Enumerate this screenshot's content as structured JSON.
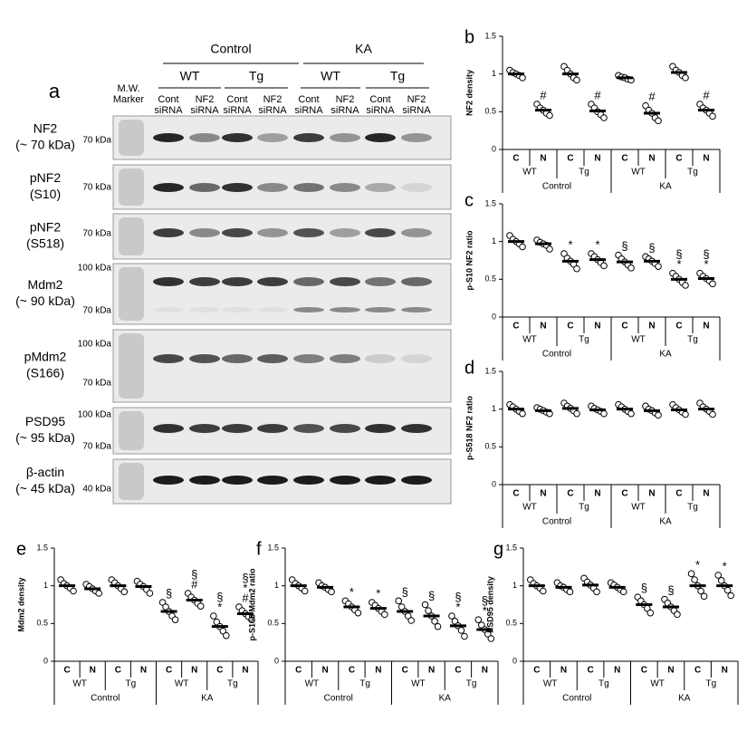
{
  "blot_panel": {
    "label": "a",
    "groups": [
      {
        "name": "Control",
        "subgroups": [
          "WT",
          "Tg"
        ]
      },
      {
        "name": "KA",
        "subgroups": [
          "WT",
          "Tg"
        ]
      }
    ],
    "marker_label": [
      "M.W.",
      "Marker"
    ],
    "lanes": [
      [
        "Cont",
        "siRNA"
      ],
      [
        "NF2",
        "siRNA"
      ],
      [
        "Cont",
        "siRNA"
      ],
      [
        "NF2",
        "siRNA"
      ],
      [
        "Cont",
        "siRNA"
      ],
      [
        "NF2",
        "siRNA"
      ],
      [
        "Cont",
        "siRNA"
      ],
      [
        "NF2",
        "siRNA"
      ]
    ],
    "rows": [
      {
        "label": [
          "NF2",
          "(~ 70 kDa)"
        ],
        "markers": [
          "70 kDa"
        ]
      },
      {
        "label": [
          "pNF2",
          "(S10)"
        ],
        "markers": [
          "70 kDa"
        ]
      },
      {
        "label": [
          "pNF2",
          "(S518)"
        ],
        "markers": [
          "70 kDa"
        ]
      },
      {
        "label": [
          "Mdm2",
          "(~ 90 kDa)"
        ],
        "markers": [
          "100 kDa",
          "70 kDa"
        ]
      },
      {
        "label": [
          "pMdm2",
          "(S166)"
        ],
        "markers": [
          "100 kDa",
          "70 kDa"
        ]
      },
      {
        "label": [
          "PSD95",
          "(~ 95 kDa)"
        ],
        "markers": [
          "100 kDa",
          "70 kDa"
        ]
      },
      {
        "label": [
          "β-actin",
          "(~ 45 kDa)"
        ],
        "markers": [
          "40 kDa"
        ]
      }
    ]
  },
  "chart_data": [
    {
      "type": "dot",
      "panel": "b",
      "y_label": "NF2 density",
      "categories": [
        "C",
        "N",
        "C",
        "N",
        "C",
        "N",
        "C",
        "N"
      ],
      "groups": [
        "WT",
        "Tg",
        "WT",
        "Tg"
      ],
      "supergroups": [
        "Control",
        "KA"
      ],
      "ylim": [
        0,
        1.5
      ],
      "yticks": [
        0,
        0.5,
        1,
        1.5
      ],
      "values": [
        1.0,
        0.52,
        1.0,
        0.51,
        0.95,
        0.48,
        1.02,
        0.52
      ],
      "points": [
        [
          1.05,
          1.02,
          1.0,
          0.98,
          0.95
        ],
        [
          0.6,
          0.55,
          0.52,
          0.48,
          0.45
        ],
        [
          1.1,
          1.05,
          1.0,
          0.95,
          0.92
        ],
        [
          0.6,
          0.55,
          0.5,
          0.46,
          0.42
        ],
        [
          0.98,
          0.96,
          0.95,
          0.93,
          0.92
        ],
        [
          0.58,
          0.52,
          0.48,
          0.42,
          0.38
        ],
        [
          1.1,
          1.05,
          1.02,
          0.98,
          0.95
        ],
        [
          0.6,
          0.55,
          0.52,
          0.48,
          0.44
        ]
      ],
      "annotations": [
        [],
        [
          "#"
        ],
        [],
        [
          "#"
        ],
        [],
        [
          "#"
        ],
        [],
        [
          "#"
        ]
      ]
    },
    {
      "type": "dot",
      "panel": "c",
      "y_label": "p-S10 NF2 ratio",
      "categories": [
        "C",
        "N",
        "C",
        "N",
        "C",
        "N",
        "C",
        "N"
      ],
      "groups": [
        "WT",
        "Tg",
        "WT",
        "Tg"
      ],
      "supergroups": [
        "Control",
        "KA"
      ],
      "ylim": [
        0,
        1.5
      ],
      "yticks": [
        0,
        0.5,
        1,
        1.5
      ],
      "values": [
        1.0,
        0.97,
        0.74,
        0.76,
        0.73,
        0.74,
        0.5,
        0.51
      ],
      "points": [
        [
          1.08,
          1.03,
          1.0,
          0.97,
          0.93
        ],
        [
          1.02,
          0.99,
          0.97,
          0.95,
          0.9
        ],
        [
          0.84,
          0.78,
          0.74,
          0.7,
          0.64
        ],
        [
          0.84,
          0.8,
          0.76,
          0.72,
          0.68
        ],
        [
          0.82,
          0.77,
          0.73,
          0.69,
          0.65
        ],
        [
          0.8,
          0.77,
          0.74,
          0.71,
          0.67
        ],
        [
          0.58,
          0.54,
          0.5,
          0.46,
          0.42
        ],
        [
          0.58,
          0.54,
          0.51,
          0.48,
          0.44
        ]
      ],
      "annotations": [
        [],
        [],
        [
          "*"
        ],
        [
          "*"
        ],
        [
          "§"
        ],
        [
          "§"
        ],
        [
          "§",
          "*"
        ],
        [
          "§",
          "*"
        ]
      ]
    },
    {
      "type": "dot",
      "panel": "d",
      "y_label": "p-S518 NF2 ratio",
      "categories": [
        "C",
        "N",
        "C",
        "N",
        "C",
        "N",
        "C",
        "N"
      ],
      "groups": [
        "WT",
        "Tg",
        "WT",
        "Tg"
      ],
      "supergroups": [
        "Control",
        "KA"
      ],
      "ylim": [
        0,
        1.5
      ],
      "yticks": [
        0,
        0.5,
        1,
        1.5
      ],
      "values": [
        1.0,
        0.98,
        1.01,
        0.99,
        1.0,
        0.98,
        0.99,
        1.0
      ],
      "points": [
        [
          1.06,
          1.03,
          1.0,
          0.97,
          0.94
        ],
        [
          1.02,
          1.0,
          0.98,
          0.96,
          0.94
        ],
        [
          1.08,
          1.04,
          1.01,
          0.98,
          0.94
        ],
        [
          1.04,
          1.01,
          0.99,
          0.97,
          0.94
        ],
        [
          1.06,
          1.03,
          1.0,
          0.97,
          0.94
        ],
        [
          1.04,
          1.0,
          0.98,
          0.95,
          0.92
        ],
        [
          1.06,
          1.02,
          0.99,
          0.96,
          0.93
        ],
        [
          1.08,
          1.03,
          1.0,
          0.97,
          0.93
        ]
      ],
      "annotations": [
        [],
        [],
        [],
        [],
        [],
        [],
        [],
        []
      ]
    },
    {
      "type": "dot",
      "panel": "e",
      "y_label": "Mdm2 density",
      "categories": [
        "C",
        "N",
        "C",
        "N",
        "C",
        "N",
        "C",
        "N"
      ],
      "groups": [
        "WT",
        "Tg",
        "WT",
        "Tg"
      ],
      "supergroups": [
        "Control",
        "KA"
      ],
      "ylim": [
        0,
        1.5
      ],
      "yticks": [
        0,
        0.5,
        1,
        1.5
      ],
      "values": [
        1.0,
        0.96,
        1.0,
        0.99,
        0.66,
        0.81,
        0.46,
        0.63
      ],
      "points": [
        [
          1.08,
          1.03,
          1.0,
          0.97,
          0.93
        ],
        [
          1.02,
          0.99,
          0.96,
          0.93,
          0.9
        ],
        [
          1.08,
          1.04,
          1.0,
          0.96,
          0.92
        ],
        [
          1.06,
          1.02,
          0.99,
          0.95,
          0.9
        ],
        [
          0.78,
          0.72,
          0.66,
          0.6,
          0.55
        ],
        [
          0.9,
          0.85,
          0.81,
          0.77,
          0.73
        ],
        [
          0.6,
          0.52,
          0.46,
          0.4,
          0.34
        ],
        [
          0.72,
          0.67,
          0.63,
          0.59,
          0.55
        ]
      ],
      "annotations": [
        [],
        [],
        [],
        [],
        [
          "§"
        ],
        [
          "§",
          "#"
        ],
        [
          "§",
          "*"
        ],
        [
          "§",
          "*",
          "#"
        ]
      ]
    },
    {
      "type": "dot",
      "panel": "f",
      "y_label": "p-S166 Mdm2 ratio",
      "categories": [
        "C",
        "N",
        "C",
        "N",
        "C",
        "N",
        "C",
        "N"
      ],
      "groups": [
        "WT",
        "Tg",
        "WT",
        "Tg"
      ],
      "supergroups": [
        "Control",
        "KA"
      ],
      "ylim": [
        0,
        1.5
      ],
      "yticks": [
        0,
        0.5,
        1,
        1.5
      ],
      "values": [
        1.0,
        0.98,
        0.72,
        0.7,
        0.66,
        0.6,
        0.47,
        0.42
      ],
      "points": [
        [
          1.08,
          1.03,
          1.0,
          0.97,
          0.93
        ],
        [
          1.04,
          1.0,
          0.98,
          0.95,
          0.92
        ],
        [
          0.8,
          0.76,
          0.72,
          0.68,
          0.64
        ],
        [
          0.78,
          0.74,
          0.7,
          0.66,
          0.62
        ],
        [
          0.8,
          0.72,
          0.66,
          0.6,
          0.54
        ],
        [
          0.75,
          0.67,
          0.6,
          0.53,
          0.46
        ],
        [
          0.6,
          0.53,
          0.47,
          0.41,
          0.33
        ],
        [
          0.55,
          0.48,
          0.42,
          0.36,
          0.3
        ]
      ],
      "annotations": [
        [],
        [],
        [
          "*"
        ],
        [
          "*"
        ],
        [
          "§"
        ],
        [
          "§"
        ],
        [
          "§",
          "*"
        ],
        [
          "§",
          "*"
        ]
      ]
    },
    {
      "type": "dot",
      "panel": "g",
      "y_label": "PSD95 density",
      "categories": [
        "C",
        "N",
        "C",
        "N",
        "C",
        "N",
        "C",
        "N"
      ],
      "groups": [
        "WT",
        "Tg",
        "WT",
        "Tg"
      ],
      "supergroups": [
        "Control",
        "KA"
      ],
      "ylim": [
        0,
        1.5
      ],
      "yticks": [
        0,
        0.5,
        1,
        1.5
      ],
      "values": [
        1.0,
        0.98,
        1.01,
        0.98,
        0.75,
        0.72,
        1.0,
        1.0
      ],
      "points": [
        [
          1.08,
          1.03,
          1.0,
          0.97,
          0.93
        ],
        [
          1.04,
          1.0,
          0.98,
          0.95,
          0.92
        ],
        [
          1.1,
          1.05,
          1.01,
          0.97,
          0.92
        ],
        [
          1.04,
          1.01,
          0.98,
          0.95,
          0.92
        ],
        [
          0.85,
          0.8,
          0.75,
          0.7,
          0.64
        ],
        [
          0.82,
          0.77,
          0.72,
          0.67,
          0.62
        ],
        [
          1.16,
          1.08,
          1.0,
          0.93,
          0.86
        ],
        [
          1.14,
          1.07,
          1.0,
          0.94,
          0.87
        ]
      ],
      "annotations": [
        [],
        [],
        [],
        [],
        [
          "§"
        ],
        [
          "§"
        ],
        [
          "*"
        ],
        [
          "*"
        ]
      ]
    }
  ]
}
